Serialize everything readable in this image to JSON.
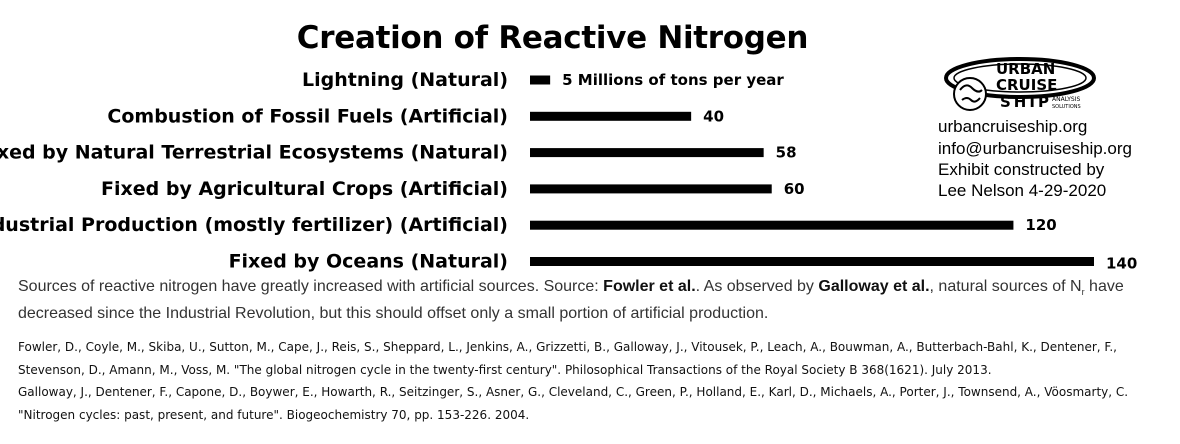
{
  "chart_data": {
    "type": "bar",
    "orientation": "horizontal",
    "title": "Creation of Reactive Nitrogen",
    "categories": [
      "Lightning (Natural)",
      "Combustion of Fossil Fuels (Artificial)",
      "Fixed by Natural Terrestrial Ecosystems (Natural)",
      "Fixed by Agricultural Crops (Artificial)",
      "Industrial Production (mostly fertilizer) (Artificial)",
      "Fixed by Oceans (Natural)"
    ],
    "values": [
      5,
      40,
      58,
      60,
      120,
      140
    ],
    "data_labels": [
      "5  Millions of tons per year",
      "40",
      "58",
      "60",
      "120",
      "140"
    ],
    "xlim": [
      0,
      140
    ],
    "bar_color": "#000000",
    "grid": false,
    "legend": "none"
  },
  "logo": {
    "line1": "URBAN",
    "line2": "CRUISE",
    "line3": "SHIP",
    "tagline_1": "ANALYSIS",
    "tagline_2": "SOLUTIONS"
  },
  "info": {
    "website": "urbancruiseship.org",
    "email": "info@urbancruiseship.org",
    "credit_1": "Exhibit constructed by",
    "credit_2": "Lee Nelson 4-29-2020"
  },
  "caption": {
    "part1": "Sources of reactive nitrogen have greatly increased with artificial sources. Source: ",
    "source1": "Fowler et al.",
    "part2": ". As observed by ",
    "source2": "Galloway et al.",
    "part3": ", natural sources of N",
    "subscript": "r",
    "part4": " have decreased since the Industrial Revolution, but this should offset only a small portion of artificial production."
  },
  "references": [
    "Fowler, D., Coyle, M., Skiba, U., Sutton, M., Cape, J., Reis, S., Sheppard, L., Jenkins, A., Grizzetti, B., Galloway, J., Vitousek, P., Leach, A., Bouwman, A., Butterbach-Bahl, K., Dentener, F., Stevenson, D., Amann, M., Voss, M. \"The global nitrogen cycle in the twenty-first century\". Philosophical Transactions of the Royal Society B 368(1621). July 2013.",
    "Galloway, J., Dentener, F., Capone, D., Boywer, E., Howarth, R., Seitzinger, S., Asner, G., Cleveland, C., Green, P., Holland, E., Karl, D., Michaels, A., Porter, J., Townsend, A., Vöosmarty, C. \"Nitrogen cycles: past, present, and future\". Biogeochemistry 70, pp. 153-226. 2004."
  ]
}
